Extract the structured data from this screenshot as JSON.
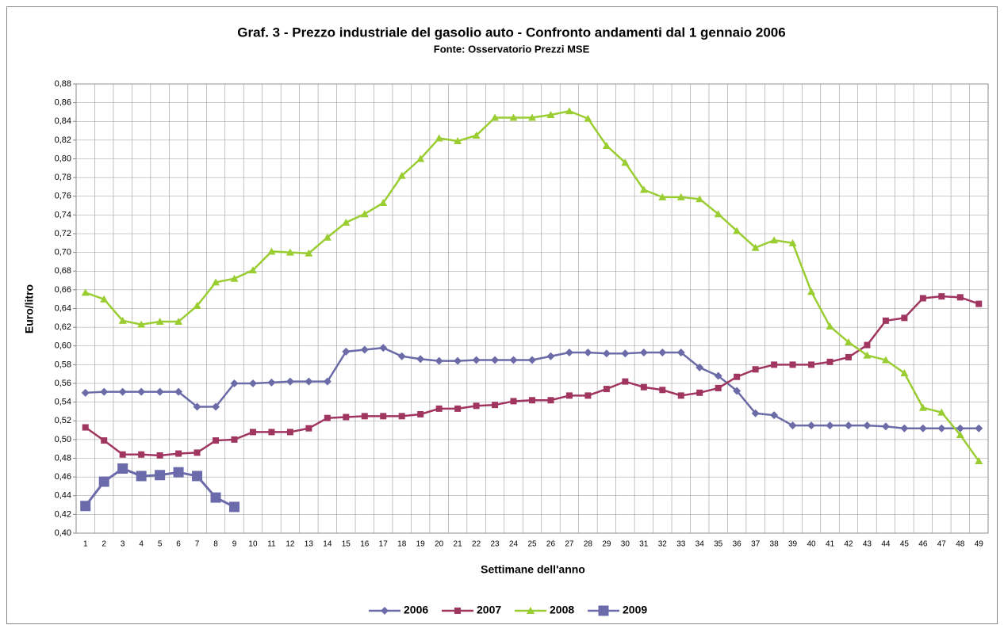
{
  "chart_data": {
    "type": "line",
    "title": "Graf. 3 - Prezzo industriale del gasolio auto - Confronto andamenti dal 1 gennaio 2006",
    "subtitle": "Fonte: Osservatorio Prezzi MSE",
    "x_label": "Settimane dell'anno",
    "y_label": "Euro/litro",
    "categories": [
      "1",
      "2",
      "3",
      "4",
      "5",
      "6",
      "7",
      "8",
      "9",
      "10",
      "11",
      "12",
      "13",
      "14",
      "15",
      "16",
      "17",
      "18",
      "19",
      "20",
      "21",
      "22",
      "23",
      "24",
      "25",
      "26",
      "27",
      "28",
      "29",
      "30",
      "31",
      "32",
      "33",
      "34",
      "35",
      "36",
      "37",
      "38",
      "39",
      "40",
      "41",
      "42",
      "43",
      "44",
      "45",
      "46",
      "47",
      "48",
      "49"
    ],
    "ylim": [
      0.4,
      0.88
    ],
    "yticks": [
      {
        "value": 0.4,
        "label": "0,40"
      },
      {
        "value": 0.42,
        "label": "0,42"
      },
      {
        "value": 0.44,
        "label": "0,44"
      },
      {
        "value": 0.46,
        "label": "0,46"
      },
      {
        "value": 0.48,
        "label": "0,48"
      },
      {
        "value": 0.5,
        "label": "0,50"
      },
      {
        "value": 0.52,
        "label": "0,52"
      },
      {
        "value": 0.54,
        "label": "0,54"
      },
      {
        "value": 0.56,
        "label": "0,56"
      },
      {
        "value": 0.58,
        "label": "0,58"
      },
      {
        "value": 0.6,
        "label": "0,60"
      },
      {
        "value": 0.62,
        "label": "0,62"
      },
      {
        "value": 0.64,
        "label": "0,64"
      },
      {
        "value": 0.66,
        "label": "0,66"
      },
      {
        "value": 0.68,
        "label": "0,68"
      },
      {
        "value": 0.7,
        "label": "0,70"
      },
      {
        "value": 0.72,
        "label": "0,72"
      },
      {
        "value": 0.74,
        "label": "0,74"
      },
      {
        "value": 0.76,
        "label": "0,76"
      },
      {
        "value": 0.78,
        "label": "0,78"
      },
      {
        "value": 0.8,
        "label": "0,80"
      },
      {
        "value": 0.82,
        "label": "0,82"
      },
      {
        "value": 0.84,
        "label": "0,84"
      },
      {
        "value": 0.86,
        "label": "0,86"
      },
      {
        "value": 0.88,
        "label": "0,88"
      }
    ],
    "grid": true,
    "legend": "bottom",
    "series": [
      {
        "name": "2006",
        "color": "#6b6ba8",
        "marker": "diamond",
        "values": [
          0.55,
          0.551,
          0.551,
          0.551,
          0.551,
          0.551,
          0.535,
          0.535,
          0.56,
          0.56,
          0.561,
          0.562,
          0.562,
          0.562,
          0.594,
          0.596,
          0.598,
          0.589,
          0.586,
          0.584,
          0.584,
          0.585,
          0.585,
          0.585,
          0.585,
          0.589,
          0.593,
          0.593,
          0.592,
          0.592,
          0.593,
          0.593,
          0.593,
          0.577,
          0.568,
          0.552,
          0.528,
          0.526,
          0.515,
          0.515,
          0.515,
          0.515,
          0.515,
          0.514,
          0.512,
          0.512,
          0.512,
          0.512,
          0.512
        ]
      },
      {
        "name": "2007",
        "color": "#a0365f",
        "marker": "square",
        "values": [
          0.513,
          0.499,
          0.484,
          0.484,
          0.483,
          0.485,
          0.486,
          0.499,
          0.5,
          0.508,
          0.508,
          0.508,
          0.512,
          0.523,
          0.524,
          0.525,
          0.525,
          0.525,
          0.527,
          0.533,
          0.533,
          0.536,
          0.537,
          0.541,
          0.542,
          0.542,
          0.547,
          0.547,
          0.554,
          0.562,
          0.556,
          0.553,
          0.547,
          0.55,
          0.555,
          0.567,
          0.575,
          0.58,
          0.58,
          0.58,
          0.583,
          0.588,
          0.601,
          0.627,
          0.63,
          0.651,
          0.653,
          0.652,
          0.645
        ]
      },
      {
        "name": "2008",
        "color": "#9acd32",
        "marker": "triangle",
        "values": [
          0.657,
          0.65,
          0.627,
          0.623,
          0.626,
          0.626,
          0.643,
          0.668,
          0.672,
          0.681,
          0.701,
          0.7,
          0.699,
          0.716,
          0.732,
          0.741,
          0.753,
          0.782,
          0.8,
          0.822,
          0.819,
          0.825,
          0.844,
          0.844,
          0.844,
          0.847,
          0.851,
          0.843,
          0.814,
          0.796,
          0.767,
          0.759,
          0.759,
          0.757,
          0.741,
          0.723,
          0.705,
          0.713,
          0.71,
          0.658,
          0.621,
          0.604,
          0.59,
          0.585,
          0.571,
          0.534,
          0.529,
          0.505,
          0.477
        ]
      },
      {
        "name": "2009",
        "color": "#6b6bab",
        "marker": "bigsquare",
        "values": [
          0.429,
          0.455,
          0.469,
          0.461,
          0.462,
          0.465,
          0.461,
          0.438,
          0.428,
          null,
          null,
          null,
          null,
          null,
          null,
          null,
          null,
          null,
          null,
          null,
          null,
          null,
          null,
          null,
          null,
          null,
          null,
          null,
          null,
          null,
          null,
          null,
          null,
          null,
          null,
          null,
          null,
          null,
          null,
          null,
          null,
          null,
          null,
          null,
          null,
          null,
          null,
          null,
          null
        ]
      }
    ]
  }
}
